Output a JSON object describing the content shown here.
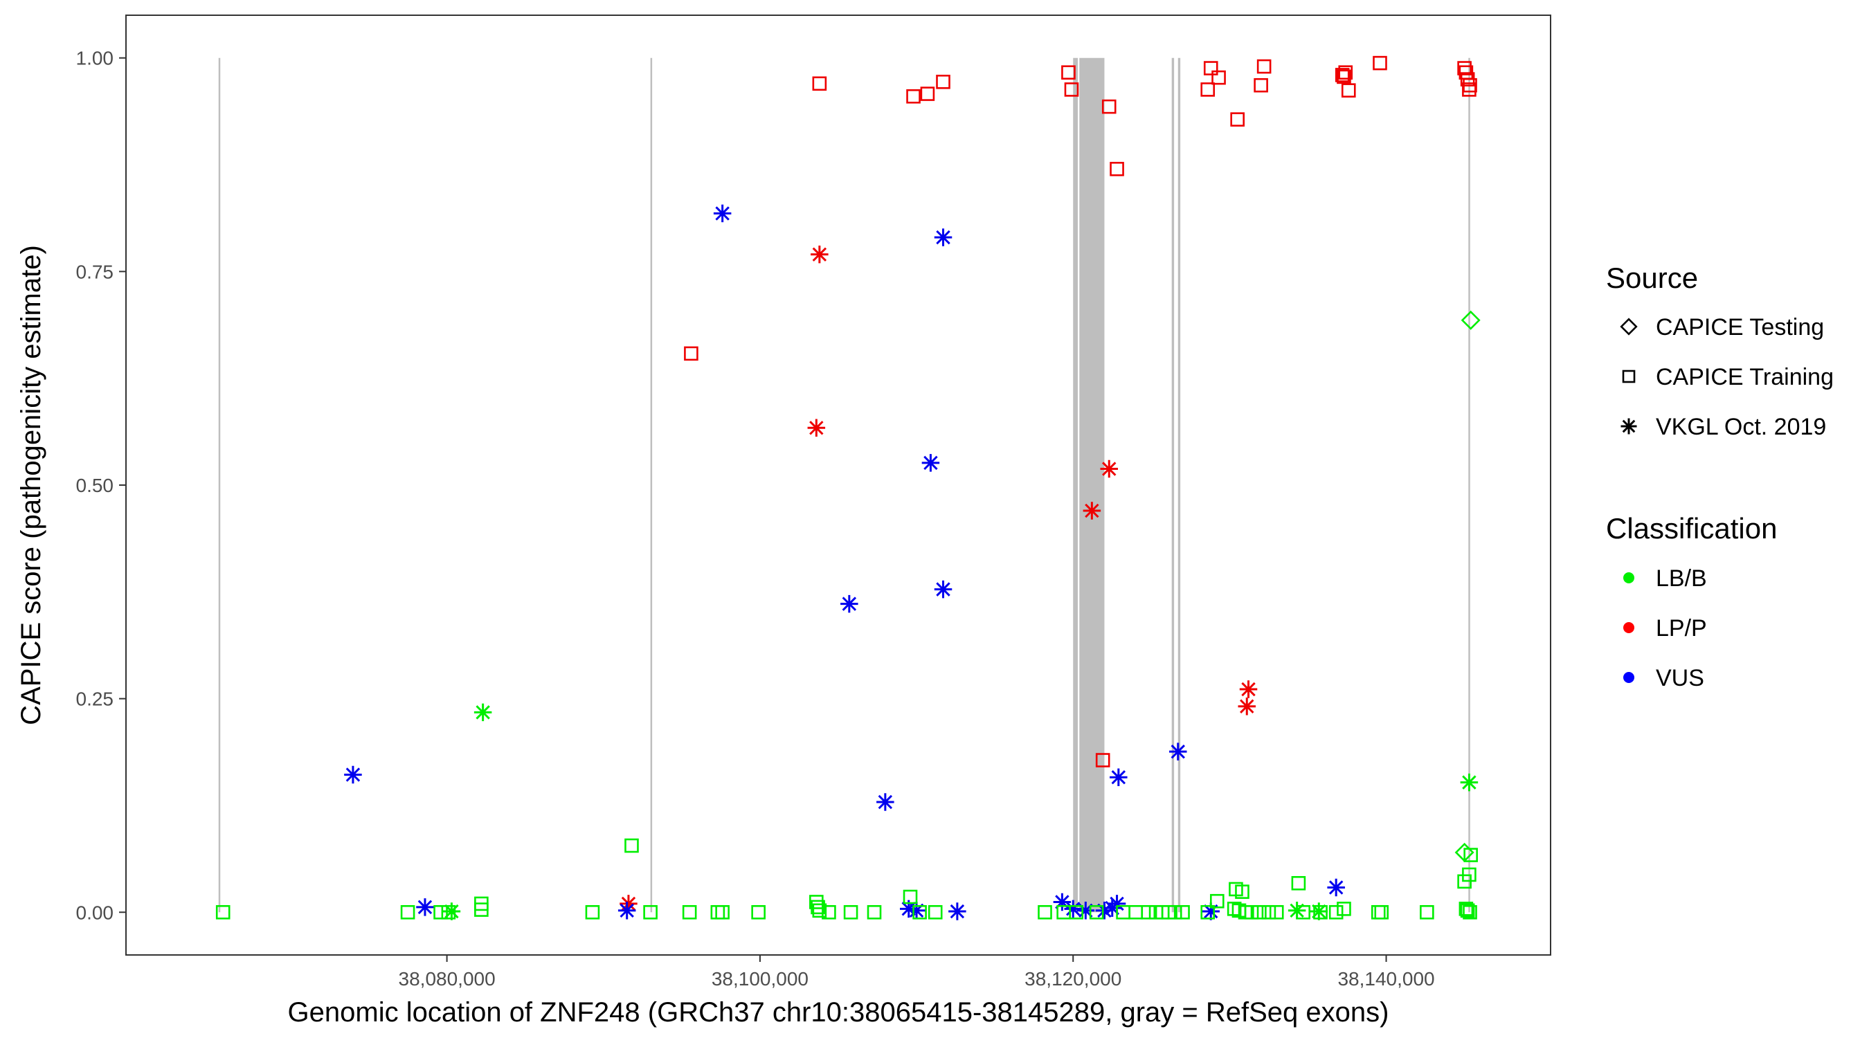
{
  "chart_data": {
    "type": "scatter",
    "title": "",
    "xlabel": "Genomic location of ZNF248 (GRCh37 chr10:38065415-38145289, gray = RefSeq exons)",
    "ylabel": "CAPICE score (pathogenicity estimate)",
    "xlim": [
      38059500,
      38150500
    ],
    "ylim": [
      -0.05,
      1.05
    ],
    "x_ticks": [
      38080000,
      38100000,
      38120000,
      38140000
    ],
    "x_tick_labels": [
      "38,080,000",
      "38,100,000",
      "38,120,000",
      "38,140,000"
    ],
    "y_ticks": [
      0,
      0.25,
      0.5,
      0.75,
      1
    ],
    "y_tick_labels": [
      "0.00",
      "0.25",
      "0.50",
      "0.75",
      "1.00"
    ],
    "grid": false,
    "legend_position": "right",
    "exons": [
      {
        "start": 38065415,
        "end": 38065430
      },
      {
        "start": 38093000,
        "end": 38093020
      },
      {
        "start": 38120000,
        "end": 38120300
      },
      {
        "start": 38120400,
        "end": 38122000
      },
      {
        "start": 38126300,
        "end": 38126450
      },
      {
        "start": 38126700,
        "end": 38126850
      },
      {
        "start": 38145250,
        "end": 38145289
      }
    ],
    "legend": {
      "source_title": "Source",
      "source_items": [
        {
          "label": "CAPICE Testing",
          "shape": "diamond"
        },
        {
          "label": "CAPICE Training",
          "shape": "square"
        },
        {
          "label": "VKGL Oct. 2019",
          "shape": "asterisk"
        }
      ],
      "class_title": "Classification",
      "class_items": [
        {
          "label": "LB/B",
          "color": "#00ee00"
        },
        {
          "label": "LP/P",
          "color": "#ff0000"
        },
        {
          "label": "VUS",
          "color": "#0000ff"
        }
      ]
    },
    "series": [
      {
        "source": "CAPICE Training",
        "classification": "LP/P",
        "shape": "square",
        "color": "#ee0000",
        "points": [
          [
            38103800,
            0.97
          ],
          [
            38109800,
            0.955
          ],
          [
            38110700,
            0.958
          ],
          [
            38111700,
            0.972
          ],
          [
            38119700,
            0.983
          ],
          [
            38119900,
            0.963
          ],
          [
            38122300,
            0.943
          ],
          [
            38122800,
            0.87
          ],
          [
            38128600,
            0.963
          ],
          [
            38128800,
            0.988
          ],
          [
            38129300,
            0.977
          ],
          [
            38130500,
            0.928
          ],
          [
            38132000,
            0.968
          ],
          [
            38132200,
            0.99
          ],
          [
            38137200,
            0.98
          ],
          [
            38137300,
            0.978
          ],
          [
            38137400,
            0.983
          ],
          [
            38137600,
            0.962
          ],
          [
            38139600,
            0.994
          ],
          [
            38145000,
            0.988
          ],
          [
            38145100,
            0.983
          ],
          [
            38145200,
            0.975
          ],
          [
            38145300,
            0.963
          ],
          [
            38145350,
            0.968
          ],
          [
            38095600,
            0.654
          ],
          [
            38121900,
            0.178
          ]
        ]
      },
      {
        "source": "VKGL Oct. 2019",
        "classification": "LP/P",
        "shape": "asterisk",
        "color": "#ee0000",
        "points": [
          [
            38103800,
            0.77
          ],
          [
            38103600,
            0.567
          ],
          [
            38122300,
            0.519
          ],
          [
            38121200,
            0.47
          ],
          [
            38131200,
            0.261
          ],
          [
            38131100,
            0.241
          ],
          [
            38091600,
            0.01
          ]
        ]
      },
      {
        "source": "VKGL Oct. 2019",
        "classification": "VUS",
        "shape": "asterisk",
        "color": "#0000ee",
        "points": [
          [
            38097600,
            0.818
          ],
          [
            38111700,
            0.79
          ],
          [
            38110900,
            0.526
          ],
          [
            38111700,
            0.378
          ],
          [
            38105700,
            0.361
          ],
          [
            38108000,
            0.129
          ],
          [
            38074000,
            0.161
          ],
          [
            38126700,
            0.188
          ],
          [
            38122900,
            0.158
          ],
          [
            38136800,
            0.029
          ],
          [
            38078600,
            0.006
          ],
          [
            38091500,
            0.002
          ],
          [
            38109500,
            0.004
          ],
          [
            38110000,
            0.002
          ],
          [
            38112600,
            0.001
          ],
          [
            38119300,
            0.012
          ],
          [
            38120000,
            0.004
          ],
          [
            38120800,
            0.002
          ],
          [
            38122000,
            0.002
          ],
          [
            38122500,
            0.005
          ],
          [
            38122800,
            0.01
          ],
          [
            38128800,
            0.001
          ]
        ]
      },
      {
        "source": "VKGL Oct. 2019",
        "classification": "LB/B",
        "shape": "asterisk",
        "color": "#00ee00",
        "points": [
          [
            38082300,
            0.234
          ],
          [
            38145300,
            0.152
          ],
          [
            38080300,
            0.001
          ],
          [
            38134300,
            0.002
          ],
          [
            38135700,
            0.001
          ]
        ]
      },
      {
        "source": "CAPICE Testing",
        "classification": "LB/B",
        "shape": "diamond",
        "color": "#00ee00",
        "points": [
          [
            38145400,
            0.693
          ],
          [
            38145000,
            0.07
          ]
        ]
      },
      {
        "source": "CAPICE Training",
        "classification": "LB/B",
        "shape": "square",
        "color": "#00ee00",
        "points": [
          [
            38065700,
            0.0
          ],
          [
            38077500,
            0.0
          ],
          [
            38079600,
            0.0
          ],
          [
            38080100,
            0.0
          ],
          [
            38082200,
            0.01
          ],
          [
            38082200,
            0.003
          ],
          [
            38089300,
            0.0
          ],
          [
            38091800,
            0.078
          ],
          [
            38093000,
            0.0
          ],
          [
            38095500,
            0.0
          ],
          [
            38097300,
            0.0
          ],
          [
            38097600,
            0.0
          ],
          [
            38099900,
            0.0
          ],
          [
            38103600,
            0.012
          ],
          [
            38103700,
            0.006
          ],
          [
            38103800,
            0.002
          ],
          [
            38104400,
            0.0
          ],
          [
            38105800,
            0.0
          ],
          [
            38107300,
            0.0
          ],
          [
            38109600,
            0.018
          ],
          [
            38110200,
            0.0
          ],
          [
            38111200,
            0.0
          ],
          [
            38118200,
            0.0
          ],
          [
            38119400,
            0.0
          ],
          [
            38120200,
            0.0
          ],
          [
            38121500,
            0.0
          ],
          [
            38123200,
            0.0
          ],
          [
            38124000,
            0.0
          ],
          [
            38124800,
            0.0
          ],
          [
            38125300,
            0.0
          ],
          [
            38125700,
            0.0
          ],
          [
            38126100,
            0.0
          ],
          [
            38126500,
            0.0
          ],
          [
            38127000,
            0.0
          ],
          [
            38128600,
            0.0
          ],
          [
            38129200,
            0.013
          ],
          [
            38130400,
            0.027
          ],
          [
            38130800,
            0.024
          ],
          [
            38130300,
            0.004
          ],
          [
            38130600,
            0.002
          ],
          [
            38131000,
            0.0
          ],
          [
            38131400,
            0.0
          ],
          [
            38131900,
            0.0
          ],
          [
            38132500,
            0.0
          ],
          [
            38133000,
            0.0
          ],
          [
            38134400,
            0.034
          ],
          [
            38134700,
            0.0
          ],
          [
            38135800,
            0.0
          ],
          [
            38136800,
            0.0
          ],
          [
            38137300,
            0.004
          ],
          [
            38139500,
            0.0
          ],
          [
            38139700,
            0.0
          ],
          [
            38142600,
            0.0
          ],
          [
            38145000,
            0.036
          ],
          [
            38145300,
            0.044
          ],
          [
            38145400,
            0.067
          ],
          [
            38145100,
            0.004
          ],
          [
            38145200,
            0.002
          ],
          [
            38145350,
            0.0
          ]
        ]
      }
    ]
  }
}
